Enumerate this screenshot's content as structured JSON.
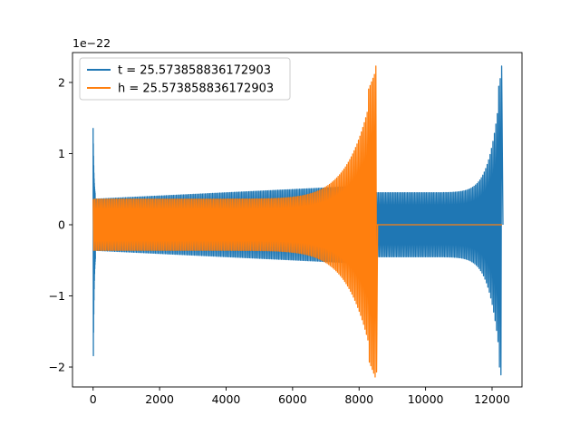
{
  "chart_data": {
    "type": "line",
    "title": "",
    "xlabel": "",
    "ylabel": "",
    "offset_text": "1e−22",
    "xlim": [
      -620,
      12900
    ],
    "ylim": [
      -2.28,
      2.42
    ],
    "xticks": [
      0,
      2000,
      4000,
      6000,
      8000,
      10000,
      12000
    ],
    "xtick_labels": [
      "0",
      "2000",
      "4000",
      "6000",
      "8000",
      "10000",
      "12000"
    ],
    "yticks": [
      -2,
      -1,
      0,
      1,
      2
    ],
    "ytick_labels": [
      "−2",
      "−1",
      "0",
      "1",
      "2"
    ],
    "grid": false,
    "legend_position": "top-left",
    "series": [
      {
        "name": "t = 25.573858836172903",
        "color": "#1f77b4",
        "description": "oscillating chirp waveform",
        "segments": [
          {
            "x_start": 0,
            "x_end": 60,
            "peak_pos": 1.4,
            "peak_neg": -1.88,
            "kind": "spike"
          },
          {
            "x_start": 60,
            "x_end": 8450,
            "amplitude_start": 0.36,
            "amplitude_end": 0.55,
            "kind": "oscillation"
          },
          {
            "x_start": 8450,
            "x_end": 12300,
            "amplitude_start": 0.45,
            "amplitude_end": 2.2,
            "kind": "chirp",
            "peak_pos": 2.23,
            "peak_neg": -2.07
          }
        ]
      },
      {
        "name": "h = 25.573858836172903",
        "color": "#ff7f0e",
        "description": "oscillating chirp waveform then flat zero",
        "segments": [
          {
            "x_start": 0,
            "x_end": 8530,
            "amplitude_start": 0.36,
            "amplitude_end": 2.2,
            "kind": "chirp",
            "peak_pos": 2.23,
            "peak_neg": -2.07
          },
          {
            "x_start": 8530,
            "x_end": 12300,
            "value": 0,
            "kind": "flat"
          }
        ]
      }
    ]
  }
}
